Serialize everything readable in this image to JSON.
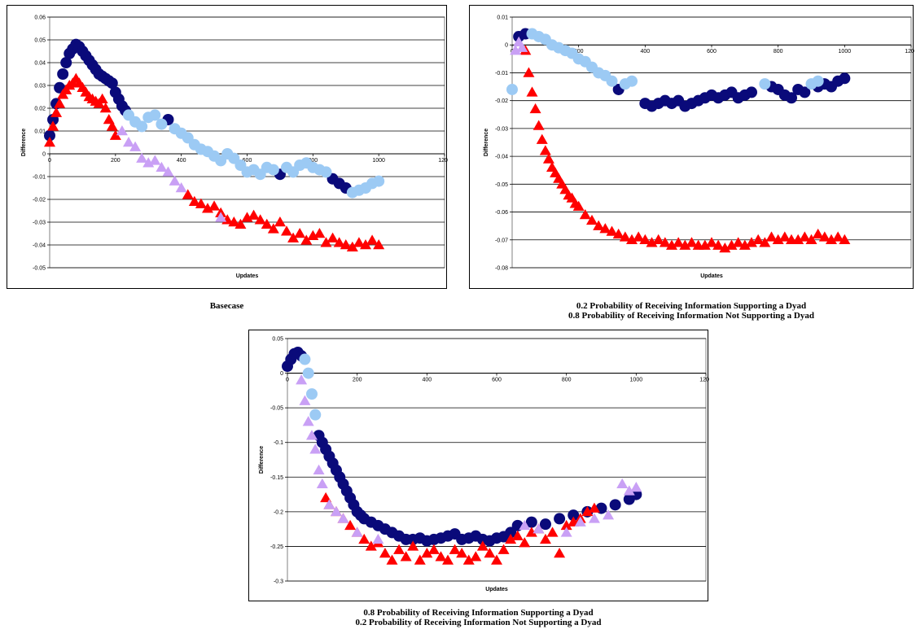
{
  "chart_data": [
    {
      "type": "scatter",
      "caption": [
        "Basecase"
      ],
      "xlabel": "Updates",
      "ylabel": "Difference",
      "xlim": [
        0,
        1200
      ],
      "ylim": [
        -0.05,
        0.06
      ],
      "xticks": [
        0,
        200,
        400,
        600,
        800,
        1000,
        1200
      ],
      "yticks": [
        -0.05,
        -0.04,
        -0.03,
        -0.02,
        -0.01,
        0,
        0.01,
        0.02,
        0.03,
        0.04,
        0.05,
        0.06
      ],
      "ytick_labels": [
        "-0.05",
        "-0.04",
        "-0.03",
        "-0.02",
        "-0.01",
        "0",
        "0.01",
        "0.02",
        "0.03",
        "0.04",
        "0.05",
        "0.06"
      ],
      "grid": "horizontal",
      "series": [
        {
          "marker": "circle",
          "color": "#0a0a7a",
          "x": [
            0,
            10,
            20,
            30,
            40,
            50,
            60,
            70,
            80,
            90,
            100,
            110,
            120,
            130,
            140,
            150,
            160,
            170,
            180,
            190,
            200,
            210,
            220,
            230,
            360,
            700,
            860,
            880,
            900
          ],
          "y": [
            0.008,
            0.015,
            0.022,
            0.029,
            0.035,
            0.04,
            0.044,
            0.046,
            0.048,
            0.047,
            0.045,
            0.043,
            0.041,
            0.039,
            0.037,
            0.035,
            0.034,
            0.033,
            0.032,
            0.031,
            0.027,
            0.024,
            0.021,
            0.019,
            0.015,
            -0.009,
            -0.011,
            -0.013,
            -0.015
          ]
        },
        {
          "marker": "circle",
          "color": "#9ccaf4",
          "x": [
            240,
            260,
            280,
            300,
            320,
            340,
            380,
            400,
            420,
            440,
            460,
            480,
            500,
            520,
            540,
            560,
            580,
            600,
            620,
            640,
            660,
            680,
            720,
            740,
            760,
            780,
            800,
            820,
            840,
            920,
            940,
            960,
            980,
            1000
          ],
          "y": [
            0.017,
            0.014,
            0.012,
            0.016,
            0.017,
            0.013,
            0.011,
            0.009,
            0.007,
            0.004,
            0.002,
            0.001,
            -0.001,
            -0.003,
            0.0,
            -0.002,
            -0.005,
            -0.008,
            -0.007,
            -0.009,
            -0.006,
            -0.007,
            -0.006,
            -0.008,
            -0.005,
            -0.004,
            -0.006,
            -0.007,
            -0.008,
            -0.017,
            -0.016,
            -0.015,
            -0.013,
            -0.012
          ]
        },
        {
          "marker": "triangle",
          "color": "#ff0000",
          "x": [
            0,
            10,
            20,
            30,
            40,
            50,
            60,
            70,
            80,
            90,
            100,
            110,
            120,
            130,
            140,
            150,
            160,
            170,
            180,
            190,
            200,
            420,
            440,
            460,
            480,
            500,
            520,
            540,
            560,
            580,
            600,
            620,
            640,
            660,
            680,
            700,
            720,
            740,
            760,
            780,
            800,
            820,
            840,
            860,
            880,
            900,
            920,
            940,
            960,
            980,
            1000
          ],
          "y": [
            0.005,
            0.012,
            0.018,
            0.022,
            0.026,
            0.028,
            0.03,
            0.031,
            0.033,
            0.031,
            0.029,
            0.027,
            0.025,
            0.024,
            0.023,
            0.022,
            0.024,
            0.02,
            0.015,
            0.012,
            0.008,
            -0.018,
            -0.021,
            -0.022,
            -0.024,
            -0.023,
            -0.026,
            -0.029,
            -0.03,
            -0.031,
            -0.028,
            -0.027,
            -0.029,
            -0.031,
            -0.033,
            -0.03,
            -0.034,
            -0.037,
            -0.035,
            -0.038,
            -0.036,
            -0.035,
            -0.039,
            -0.037,
            -0.039,
            -0.04,
            -0.041,
            -0.039,
            -0.04,
            -0.038,
            -0.04
          ]
        },
        {
          "marker": "triangle",
          "color": "#c9a0f5",
          "x": [
            220,
            240,
            260,
            280,
            300,
            320,
            340,
            360,
            380,
            400,
            520
          ],
          "y": [
            0.01,
            0.005,
            0.003,
            -0.002,
            -0.004,
            -0.003,
            -0.006,
            -0.008,
            -0.012,
            -0.015,
            -0.028
          ]
        }
      ]
    },
    {
      "type": "scatter",
      "caption": [
        "0.2 Probability of Receiving Information Supporting a Dyad",
        "0.8 Probability of Receiving Information Not Supporting a Dyad"
      ],
      "xlabel": "Updates",
      "ylabel": "Difference",
      "xlim": [
        0,
        1200
      ],
      "ylim": [
        -0.08,
        0.01
      ],
      "xticks": [
        0,
        200,
        400,
        600,
        800,
        1000,
        1200
      ],
      "yticks": [
        -0.08,
        -0.07,
        -0.06,
        -0.05,
        -0.04,
        -0.03,
        -0.02,
        -0.01,
        0,
        0.01
      ],
      "ytick_labels": [
        "-0.08",
        "-0.07",
        "-0.06",
        "-0.05",
        "-0.04",
        "-0.03",
        "-0.02",
        "-0.01",
        "0",
        "0.01"
      ],
      "grid": "horizontal",
      "series": [
        {
          "marker": "circle",
          "color": "#0a0a7a",
          "x": [
            20,
            40,
            320,
            400,
            420,
            440,
            460,
            480,
            500,
            520,
            540,
            560,
            580,
            600,
            620,
            640,
            660,
            680,
            700,
            720,
            780,
            800,
            820,
            840,
            860,
            880,
            920,
            940,
            960,
            980,
            1000
          ],
          "y": [
            0.003,
            0.004,
            -0.016,
            -0.021,
            -0.022,
            -0.021,
            -0.02,
            -0.021,
            -0.02,
            -0.022,
            -0.021,
            -0.02,
            -0.019,
            -0.018,
            -0.019,
            -0.018,
            -0.017,
            -0.019,
            -0.018,
            -0.017,
            -0.015,
            -0.016,
            -0.018,
            -0.019,
            -0.016,
            -0.017,
            -0.015,
            -0.014,
            -0.015,
            -0.013,
            -0.012
          ]
        },
        {
          "marker": "circle",
          "color": "#9ccaf4",
          "x": [
            0,
            60,
            80,
            100,
            120,
            140,
            160,
            180,
            200,
            220,
            240,
            260,
            280,
            300,
            340,
            360,
            760,
            900,
            920
          ],
          "y": [
            -0.016,
            0.004,
            0.003,
            0.002,
            0.0,
            -0.001,
            -0.002,
            -0.003,
            -0.005,
            -0.006,
            -0.008,
            -0.01,
            -0.011,
            -0.013,
            -0.014,
            -0.013,
            -0.014,
            -0.014,
            -0.013
          ]
        },
        {
          "marker": "triangle",
          "color": "#ff0000",
          "x": [
            40,
            50,
            60,
            70,
            80,
            90,
            100,
            110,
            120,
            130,
            140,
            150,
            160,
            170,
            180,
            190,
            200,
            220,
            240,
            260,
            280,
            300,
            320,
            340,
            360,
            380,
            400,
            420,
            440,
            460,
            480,
            500,
            520,
            540,
            560,
            580,
            600,
            620,
            640,
            660,
            680,
            700,
            720,
            740,
            760,
            780,
            800,
            820,
            840,
            860,
            880,
            900,
            920,
            940,
            960,
            980,
            1000
          ],
          "y": [
            -0.002,
            -0.01,
            -0.017,
            -0.023,
            -0.029,
            -0.034,
            -0.038,
            -0.041,
            -0.044,
            -0.046,
            -0.048,
            -0.05,
            -0.052,
            -0.054,
            -0.055,
            -0.057,
            -0.058,
            -0.061,
            -0.063,
            -0.065,
            -0.066,
            -0.067,
            -0.068,
            -0.069,
            -0.07,
            -0.069,
            -0.07,
            -0.071,
            -0.07,
            -0.071,
            -0.072,
            -0.071,
            -0.072,
            -0.071,
            -0.072,
            -0.072,
            -0.071,
            -0.072,
            -0.073,
            -0.072,
            -0.071,
            -0.072,
            -0.071,
            -0.07,
            -0.071,
            -0.069,
            -0.07,
            -0.069,
            -0.07,
            -0.07,
            -0.069,
            -0.07,
            -0.068,
            -0.069,
            -0.07,
            -0.069,
            -0.07
          ]
        },
        {
          "marker": "triangle",
          "color": "#c9a0f5",
          "x": [
            10,
            20,
            30
          ],
          "y": [
            -0.002,
            0.001,
            -0.001
          ]
        }
      ]
    },
    {
      "type": "scatter",
      "caption": [
        "0.8 Probability of Receiving Information Supporting a Dyad",
        "0.2 Probability of Receiving Information Not Supporting a Dyad"
      ],
      "xlabel": "Updates",
      "ylabel": "Difference",
      "xlim": [
        0,
        1200
      ],
      "ylim": [
        -0.3,
        0.05
      ],
      "xticks": [
        0,
        200,
        400,
        600,
        800,
        1000,
        1200
      ],
      "yticks": [
        -0.3,
        -0.25,
        -0.2,
        -0.15,
        -0.1,
        -0.05,
        0,
        0.05
      ],
      "ytick_labels": [
        "-0.3",
        "-0.25",
        "-0.2",
        "-0.15",
        "-0.1",
        "-0.05",
        "0",
        "0.05"
      ],
      "grid": "horizontal",
      "series": [
        {
          "marker": "circle",
          "color": "#0a0a7a",
          "x": [
            0,
            10,
            20,
            30,
            40,
            90,
            100,
            110,
            120,
            130,
            140,
            150,
            160,
            170,
            180,
            190,
            200,
            210,
            220,
            240,
            260,
            280,
            300,
            320,
            340,
            360,
            380,
            400,
            420,
            440,
            460,
            480,
            500,
            520,
            540,
            560,
            580,
            600,
            620,
            640,
            660,
            700,
            740,
            780,
            820,
            860,
            900,
            940,
            980,
            1000
          ],
          "y": [
            0.01,
            0.02,
            0.028,
            0.03,
            0.025,
            -0.09,
            -0.1,
            -0.11,
            -0.12,
            -0.13,
            -0.14,
            -0.15,
            -0.16,
            -0.17,
            -0.18,
            -0.19,
            -0.2,
            -0.205,
            -0.21,
            -0.215,
            -0.22,
            -0.225,
            -0.23,
            -0.235,
            -0.24,
            -0.24,
            -0.238,
            -0.242,
            -0.24,
            -0.238,
            -0.235,
            -0.232,
            -0.24,
            -0.238,
            -0.235,
            -0.24,
            -0.242,
            -0.238,
            -0.236,
            -0.23,
            -0.22,
            -0.215,
            -0.218,
            -0.21,
            -0.205,
            -0.2,
            -0.195,
            -0.19,
            -0.182,
            -0.175
          ]
        },
        {
          "marker": "circle",
          "color": "#9ccaf4",
          "x": [
            50,
            60,
            70,
            80
          ],
          "y": [
            0.02,
            0.0,
            -0.03,
            -0.06
          ]
        },
        {
          "marker": "triangle",
          "color": "#ff0000",
          "x": [
            110,
            120,
            140,
            160,
            180,
            200,
            220,
            240,
            260,
            280,
            300,
            320,
            340,
            360,
            380,
            400,
            420,
            440,
            460,
            480,
            500,
            520,
            540,
            560,
            580,
            600,
            620,
            640,
            660,
            680,
            700,
            720,
            740,
            760,
            780,
            800,
            820,
            840,
            860,
            880
          ],
          "y": [
            -0.18,
            -0.19,
            -0.2,
            -0.21,
            -0.22,
            -0.23,
            -0.24,
            -0.25,
            -0.245,
            -0.26,
            -0.27,
            -0.255,
            -0.265,
            -0.25,
            -0.27,
            -0.26,
            -0.255,
            -0.265,
            -0.27,
            -0.255,
            -0.26,
            -0.27,
            -0.265,
            -0.25,
            -0.26,
            -0.27,
            -0.255,
            -0.24,
            -0.235,
            -0.245,
            -0.23,
            -0.225,
            -0.24,
            -0.23,
            -0.26,
            -0.22,
            -0.215,
            -0.21,
            -0.2,
            -0.195
          ]
        },
        {
          "marker": "triangle",
          "color": "#c9a0f5",
          "x": [
            40,
            50,
            60,
            70,
            80,
            90,
            100,
            120,
            140,
            160,
            200,
            260,
            680,
            720,
            800,
            840,
            880,
            920,
            960,
            980,
            1000
          ],
          "y": [
            -0.01,
            -0.04,
            -0.07,
            -0.09,
            -0.11,
            -0.14,
            -0.16,
            -0.19,
            -0.2,
            -0.21,
            -0.23,
            -0.24,
            -0.22,
            -0.225,
            -0.23,
            -0.215,
            -0.21,
            -0.205,
            -0.16,
            -0.17,
            -0.165
          ]
        }
      ]
    }
  ]
}
